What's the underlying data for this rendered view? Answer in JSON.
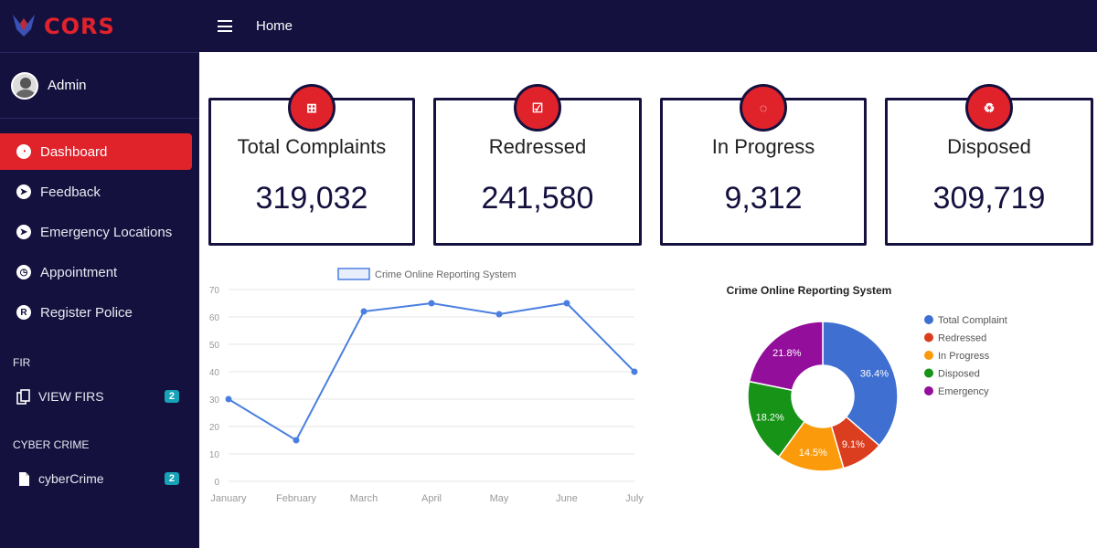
{
  "app": {
    "brand": "CORS"
  },
  "topbar": {
    "breadcrumb": "Home"
  },
  "user": {
    "name": "Admin"
  },
  "sidebar": {
    "items": [
      {
        "label": "Dashboard",
        "icon": "dashboard-icon",
        "active": true
      },
      {
        "label": "Feedback",
        "icon": "compass-icon",
        "active": false
      },
      {
        "label": "Emergency Locations",
        "icon": "compass-icon",
        "active": false
      },
      {
        "label": "Appointment",
        "icon": "clock-icon",
        "active": false
      },
      {
        "label": "Register Police",
        "icon": "registered-icon",
        "active": false
      }
    ],
    "sections": [
      {
        "title": "FIR",
        "item": {
          "label": "VIEW FIRS",
          "badge": "2",
          "icon": "documents-icon"
        }
      },
      {
        "title": "CYBER CRIME",
        "item": {
          "label": "cyberCrime",
          "badge": "2",
          "icon": "file-icon"
        }
      }
    ]
  },
  "stats": [
    {
      "title": "Total Complaints",
      "value": "319,032",
      "icon": "plus-box-icon"
    },
    {
      "title": "Redressed",
      "value": "241,580",
      "icon": "check-box-icon"
    },
    {
      "title": "In Progress",
      "value": "9,312",
      "icon": "spinner-icon"
    },
    {
      "title": "Disposed",
      "value": "309,719",
      "icon": "recycle-icon"
    }
  ],
  "colors": {
    "sidebar": "#15113f",
    "accent": "#e0222b",
    "line": "#4a7fe0",
    "badge": "#17a2b8"
  },
  "chart_data": [
    {
      "type": "line",
      "title": "",
      "categories": [
        "January",
        "February",
        "March",
        "April",
        "May",
        "June",
        "July"
      ],
      "series": [
        {
          "name": "Crime Online Reporting System",
          "values": [
            30,
            15,
            62,
            65,
            61,
            65,
            40
          ]
        }
      ],
      "ylim": [
        0,
        70
      ],
      "yticks": [
        0,
        10,
        20,
        30,
        40,
        50,
        60,
        70
      ],
      "legend": "top",
      "grid": true
    },
    {
      "type": "pie",
      "title": "Crime Online Reporting System",
      "donut": true,
      "slices": [
        {
          "label": "Total Complaint",
          "value": 36.4,
          "display": "36.4%",
          "color": "#3e6fd1"
        },
        {
          "label": "Redressed",
          "value": 9.1,
          "display": "9.1%",
          "color": "#db3d1f"
        },
        {
          "label": "In Progress",
          "value": 14.5,
          "display": "14.5%",
          "color": "#fb9a0a"
        },
        {
          "label": "Disposed",
          "value": 18.2,
          "display": "18.2%",
          "color": "#179318"
        },
        {
          "label": "Emergency",
          "value": 21.8,
          "display": "21.8%",
          "color": "#930e9a"
        }
      ],
      "legend": "right"
    }
  ]
}
